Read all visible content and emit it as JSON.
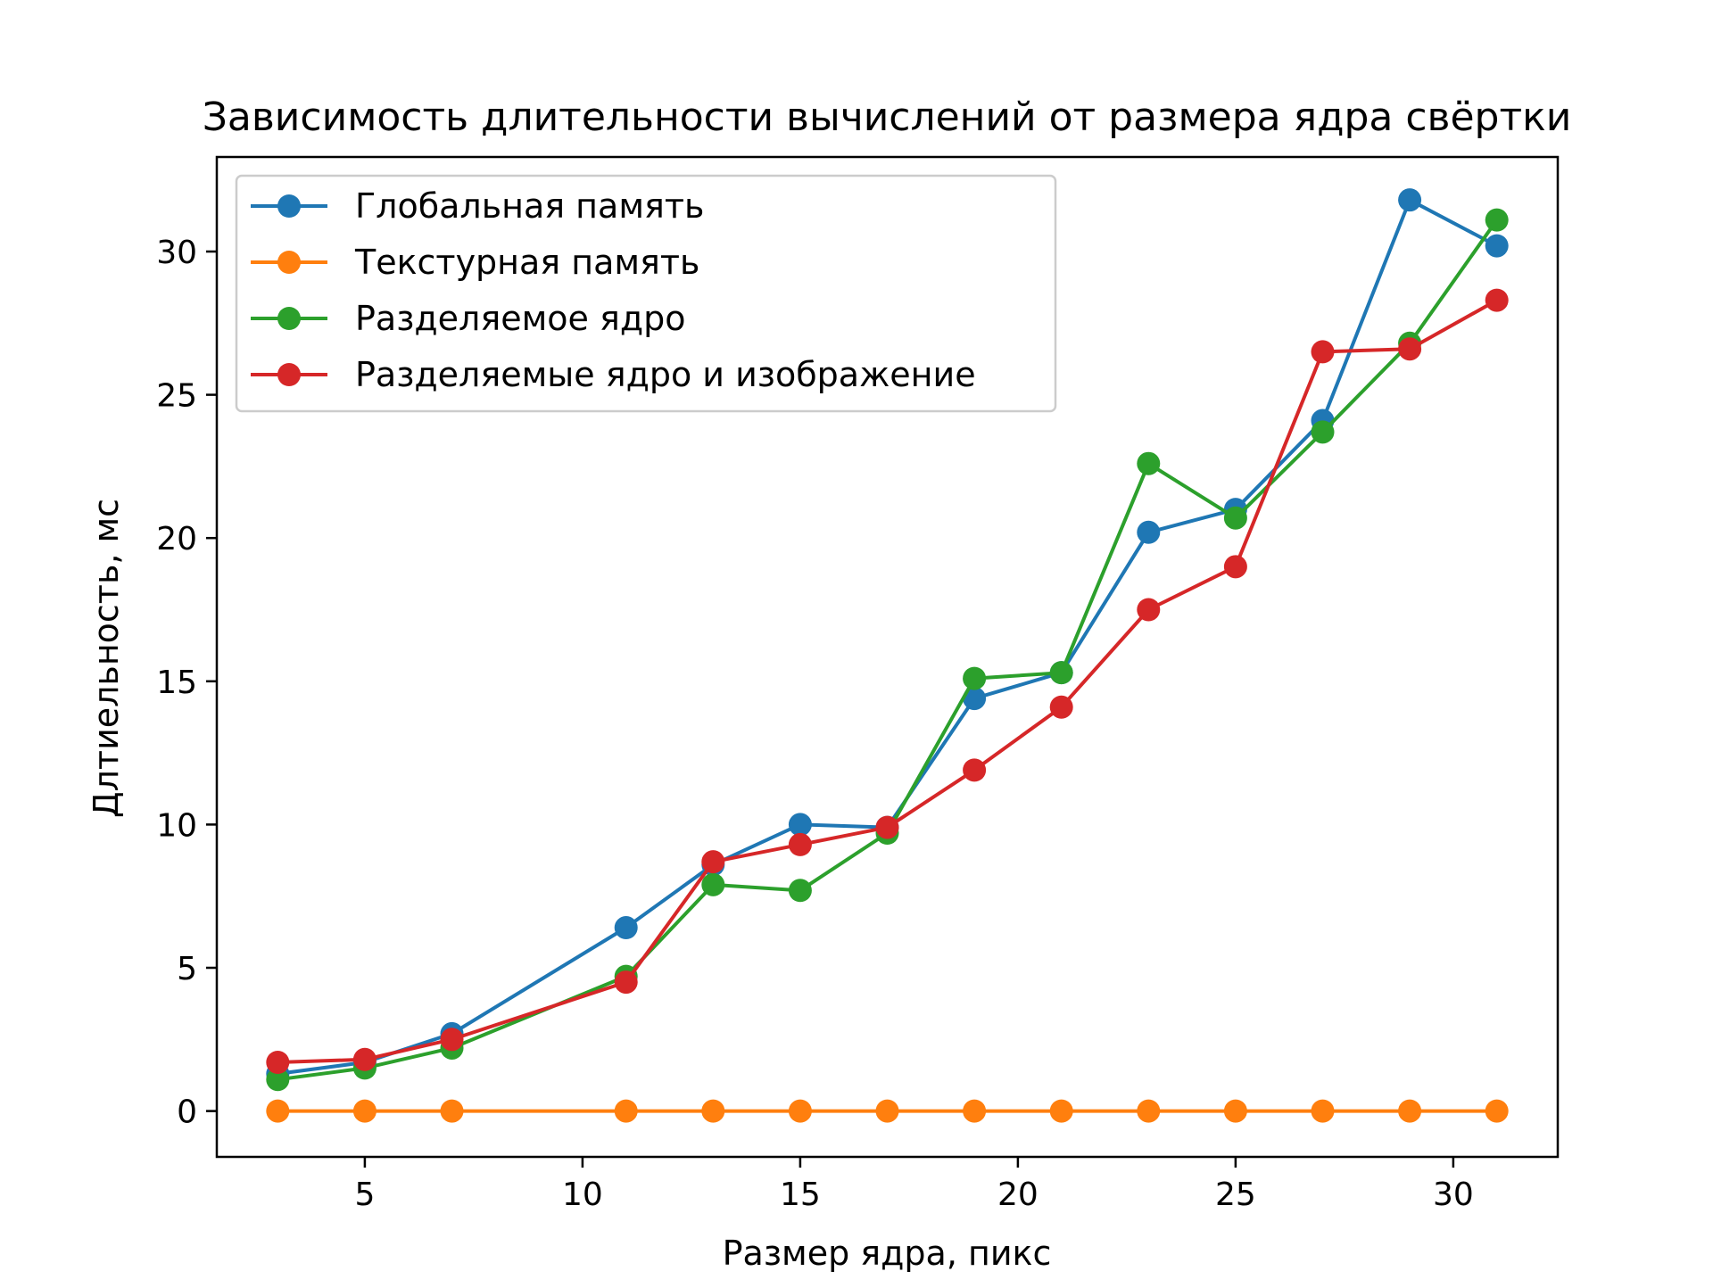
{
  "chart_data": {
    "type": "line",
    "title": "Зависимость длительности вычислений от размера ядра свёртки",
    "xlabel": "Размер ядра, пикс",
    "ylabel": "Длтиельность, мс",
    "x": [
      3,
      5,
      7,
      11,
      13,
      15,
      17,
      19,
      21,
      23,
      25,
      27,
      29,
      31
    ],
    "xlim": [
      1.6,
      32.4
    ],
    "ylim": [
      -1.6,
      33.3
    ],
    "xticks": [
      5,
      10,
      15,
      20,
      25,
      30
    ],
    "yticks": [
      0,
      5,
      10,
      15,
      20,
      25,
      30
    ],
    "xtick_labels": [
      "5",
      "10",
      "15",
      "20",
      "25",
      "30"
    ],
    "ytick_labels": [
      "0",
      "5",
      "10",
      "15",
      "20",
      "25",
      "30"
    ],
    "grid": false,
    "legend_position": "upper-left",
    "series": [
      {
        "name": "Глобальная память",
        "color": "#1f77b4",
        "values": [
          1.3,
          1.7,
          2.7,
          6.4,
          8.6,
          10.0,
          9.9,
          14.4,
          15.3,
          20.2,
          21.0,
          24.1,
          31.8,
          30.2
        ]
      },
      {
        "name": "Текстурная память",
        "color": "#ff7f0e",
        "values": [
          0.0,
          0.0,
          0.0,
          0.0,
          0.0,
          0.0,
          0.0,
          0.0,
          0.0,
          0.0,
          0.0,
          0.0,
          0.0,
          0.0
        ]
      },
      {
        "name": "Разделяемое ядро",
        "color": "#2ca02c",
        "values": [
          1.1,
          1.5,
          2.2,
          4.7,
          7.9,
          7.7,
          9.7,
          15.1,
          15.3,
          22.6,
          20.7,
          23.7,
          26.8,
          31.1
        ]
      },
      {
        "name": "Разделяемые ядро и изображение",
        "color": "#d62728",
        "values": [
          1.7,
          1.8,
          2.5,
          4.5,
          8.7,
          9.3,
          9.9,
          11.9,
          14.1,
          17.5,
          19.0,
          26.5,
          26.6,
          28.3
        ]
      }
    ]
  }
}
